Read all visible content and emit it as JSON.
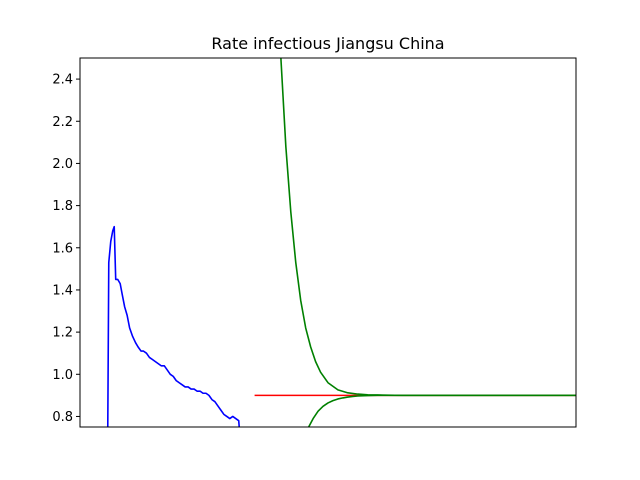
{
  "chart_data": {
    "type": "line",
    "title": "Rate infectious Jiangsu China",
    "xlabel": "",
    "ylabel": "",
    "xlim": [
      0,
      100
    ],
    "ylim": [
      0.75,
      2.5
    ],
    "x_ticks_visible": false,
    "y_ticks": [
      {
        "value": 0.8,
        "label": "0.8"
      },
      {
        "value": 1.0,
        "label": "1.0"
      },
      {
        "value": 1.2,
        "label": "1.2"
      },
      {
        "value": 1.4,
        "label": "1.4"
      },
      {
        "value": 1.6,
        "label": "1.6"
      },
      {
        "value": 1.8,
        "label": "1.8"
      },
      {
        "value": 2.0,
        "label": "2.0"
      },
      {
        "value": 2.2,
        "label": "2.2"
      },
      {
        "value": 2.4,
        "label": "2.4"
      }
    ],
    "grid": false,
    "series": [
      {
        "color": "#0000ff",
        "x": [
          5.6,
          5.8,
          6.2,
          6.6,
          6.9,
          7.2,
          7.6,
          8.1,
          8.5,
          9.0,
          9.5,
          10.0,
          10.6,
          11.2,
          11.7,
          12.3,
          12.8,
          13.4,
          14.0,
          14.6,
          15.2,
          15.8,
          16.4,
          17.0,
          17.6,
          18.2,
          18.8,
          19.4,
          20.0,
          20.6,
          21.2,
          21.8,
          22.4,
          23.0,
          23.6,
          24.2,
          24.8,
          25.4,
          26.0,
          26.6,
          27.2,
          27.8,
          28.4,
          29.0,
          29.6,
          30.2,
          30.8,
          31.4,
          32.0,
          32.1
        ],
        "y": [
          0.75,
          1.53,
          1.63,
          1.68,
          1.7,
          1.45,
          1.45,
          1.43,
          1.38,
          1.32,
          1.28,
          1.22,
          1.18,
          1.15,
          1.13,
          1.11,
          1.11,
          1.1,
          1.08,
          1.07,
          1.06,
          1.05,
          1.04,
          1.04,
          1.02,
          1.0,
          0.99,
          0.97,
          0.96,
          0.95,
          0.94,
          0.94,
          0.93,
          0.93,
          0.92,
          0.92,
          0.91,
          0.91,
          0.9,
          0.88,
          0.87,
          0.85,
          0.83,
          0.81,
          0.8,
          0.79,
          0.8,
          0.79,
          0.78,
          0.75
        ]
      },
      {
        "color": "#ff0000",
        "x": [
          35.2,
          100.0
        ],
        "y": [
          0.9,
          0.9
        ]
      },
      {
        "color": "#008000",
        "x": [
          40.5,
          41.5,
          42.5,
          43.5,
          44.5,
          45.5,
          46.5,
          47.5,
          48.5,
          50.0,
          52.0,
          54.0,
          56.0,
          58.0,
          60.0,
          62.0,
          65.0,
          70.0,
          75.0,
          80.0,
          85.0,
          90.0,
          95.0,
          100.0
        ],
        "y": [
          2.5,
          2.08,
          1.77,
          1.53,
          1.35,
          1.22,
          1.13,
          1.06,
          1.01,
          0.96,
          0.926,
          0.912,
          0.906,
          0.903,
          0.902,
          0.901,
          0.9,
          0.9,
          0.9,
          0.9,
          0.9,
          0.9,
          0.9,
          0.9
        ]
      },
      {
        "color": "#008000",
        "x": [
          46.1,
          47.0,
          48.0,
          49.0,
          50.0,
          51.0,
          52.0,
          53.0,
          54.0,
          55.0,
          56.0,
          58.0,
          60.0,
          62.0,
          65.0,
          70.0,
          75.0,
          80.0,
          85.0,
          90.0,
          95.0,
          100.0
        ],
        "y": [
          0.75,
          0.79,
          0.825,
          0.848,
          0.864,
          0.875,
          0.883,
          0.888,
          0.892,
          0.895,
          0.897,
          0.899,
          0.9,
          0.9,
          0.9,
          0.9,
          0.9,
          0.9,
          0.9,
          0.9,
          0.9,
          0.9
        ]
      }
    ]
  }
}
